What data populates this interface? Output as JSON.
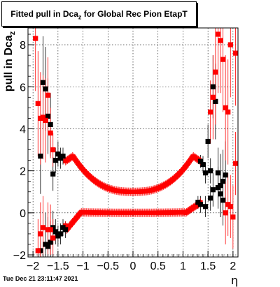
{
  "chart_data": {
    "type": "scatter",
    "title": "Fitted pull in Dca_z for Global Rec Pion EtapT",
    "title_prefix": "Fitted pull in Dca",
    "title_sub": "z",
    "title_suffix": " for Global Rec Pion EtapT",
    "xlabel": "η",
    "ylabel": "pull in Dca_z",
    "ylabel_main": "pull in Dca",
    "ylabel_sub": "z",
    "xlim": [
      -2.1,
      2.1
    ],
    "ylim": [
      -2.1,
      8.8
    ],
    "xticks": [
      -2,
      -1.5,
      -1,
      -0.5,
      0,
      0.5,
      1,
      1.5,
      2
    ],
    "xtick_labels": [
      "−2",
      "−1.5",
      "−1",
      "−0.5",
      "0",
      "0.5",
      "1",
      "1.5",
      "2"
    ],
    "yticks": [
      -2,
      0,
      2,
      4,
      6,
      8
    ],
    "ytick_labels": [
      "−2",
      "0",
      "2",
      "4",
      "6",
      "8"
    ],
    "grid": true,
    "footer": "Tue Dec 21 23:11:47 2021",
    "series": [
      {
        "color": "#000000",
        "marker": "square",
        "points": [
          [
            -1.85,
            2.7,
            1.8
          ],
          [
            -1.8,
            6.2,
            2.2
          ],
          [
            -1.75,
            5.9,
            2.0
          ],
          [
            -1.7,
            4.6,
            1.8
          ],
          [
            -1.65,
            4.2,
            1.5
          ],
          [
            -1.6,
            1.85,
            0.8
          ],
          [
            -1.55,
            2.5,
            0.6
          ],
          [
            -1.5,
            2.8,
            0.6
          ],
          [
            -1.45,
            2.6,
            0.5
          ],
          [
            -1.4,
            2.7,
            0.4
          ],
          [
            1.35,
            2.45,
            0.3
          ],
          [
            1.4,
            2.3,
            0.4
          ],
          [
            1.45,
            1.9,
            0.5
          ],
          [
            1.5,
            3.4,
            0.8
          ],
          [
            1.55,
            2.0,
            0.6
          ],
          [
            1.6,
            6.0,
            1.5
          ],
          [
            1.65,
            5.3,
            1.8
          ],
          [
            1.7,
            1.9,
            1.2
          ],
          [
            1.75,
            1.3,
            1.5
          ],
          [
            1.8,
            1.5,
            1.5
          ],
          [
            1.85,
            1.8,
            1.6
          ],
          [
            -1.85,
            -1.8,
            1.2
          ],
          [
            -1.75,
            -1.5,
            1.5
          ],
          [
            -1.7,
            -1.6,
            1.4
          ],
          [
            -1.65,
            -1.4,
            1.0
          ],
          [
            -1.6,
            -0.7,
            0.8
          ],
          [
            -1.55,
            -0.9,
            0.6
          ],
          [
            -1.5,
            -1.1,
            0.5
          ],
          [
            -1.45,
            -1.0,
            0.5
          ],
          [
            -1.4,
            -0.7,
            0.4
          ],
          [
            -1.35,
            -0.8,
            0.4
          ],
          [
            1.3,
            0.5,
            0.3
          ],
          [
            1.35,
            0.4,
            0.4
          ],
          [
            1.45,
            0.3,
            0.5
          ],
          [
            1.55,
            0.7,
            0.6
          ],
          [
            1.6,
            1.1,
            0.8
          ],
          [
            1.7,
            1.2,
            1.0
          ],
          [
            1.75,
            0.9,
            1.1
          ],
          [
            1.8,
            0.6,
            1.2
          ]
        ]
      },
      {
        "color": "#ff0000",
        "marker": "square",
        "points": [
          [
            -1.95,
            8.3,
            2.5
          ],
          [
            -1.9,
            5.2,
            2.5
          ],
          [
            -1.85,
            4.5,
            2.2
          ],
          [
            -1.8,
            4.55,
            2.0
          ],
          [
            -1.75,
            4.4,
            2.0
          ],
          [
            -1.7,
            5.6,
            1.8
          ],
          [
            -1.65,
            3.8,
            1.2
          ],
          [
            -1.6,
            3.0,
            0.8
          ],
          [
            1.55,
            4.8,
            1.5
          ],
          [
            1.6,
            5.5,
            2.0
          ],
          [
            1.65,
            6.7,
            2.5
          ],
          [
            1.7,
            8.5,
            2.8
          ],
          [
            1.75,
            8.2,
            2.5
          ],
          [
            1.8,
            7.3,
            2.5
          ],
          [
            1.85,
            5.0,
            2.5
          ],
          [
            1.9,
            4.8,
            2.5
          ],
          [
            1.95,
            8.0,
            2.5
          ],
          [
            2.05,
            7.6,
            2.5
          ],
          [
            -1.9,
            -1.8,
            1.5
          ],
          [
            -1.85,
            -1.0,
            1.5
          ],
          [
            -1.8,
            -0.7,
            1.5
          ],
          [
            -1.7,
            -0.8,
            1.3
          ],
          [
            -1.65,
            -0.8,
            1.2
          ],
          [
            -1.6,
            -1.2,
            0.9
          ],
          [
            1.85,
            0.0,
            1.5
          ],
          [
            1.9,
            0.4,
            1.5
          ],
          [
            1.95,
            0.3,
            1.5
          ],
          [
            2.0,
            -0.2,
            1.5
          ],
          [
            2.05,
            2.35,
            1.5
          ]
        ]
      }
    ]
  }
}
